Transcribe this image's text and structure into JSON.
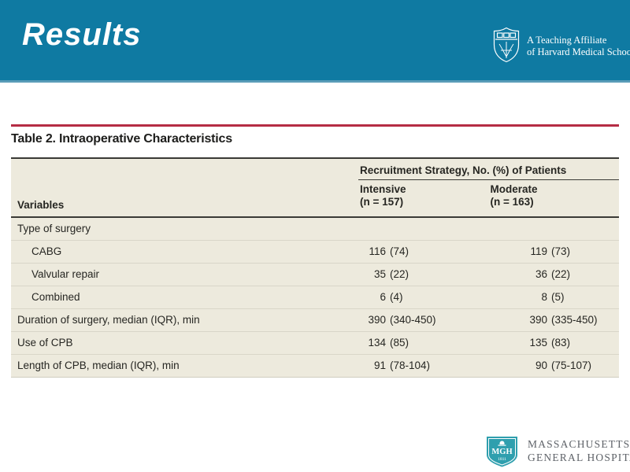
{
  "slide": {
    "title": "Results",
    "affiliation": {
      "line1": "A Teaching Affiliate",
      "line2": "of Harvard Medical School"
    },
    "hospital_logo": {
      "shield_text": "MGH",
      "shield_year": "1811",
      "line1": "MASSACHUSETTS",
      "line2": "GENERAL HOSPITAL"
    }
  },
  "colors": {
    "banner_teal": "#0f7aa2",
    "banner_edge": "#5a9cb8",
    "rule_red": "#b52c44",
    "table_cream": "#edeadd",
    "table_border_dark": "#3a3a36",
    "row_separator": "#d9d6c8",
    "mgh_teal": "#2f9fae",
    "mgh_gray": "#5e6268"
  },
  "table": {
    "title": "Table 2. Intraoperative Characteristics",
    "group_header": "Recruitment Strategy, No. (%) of Patients",
    "col_label": "Variables",
    "columns": [
      {
        "name": "Intensive",
        "n": "(n = 157)"
      },
      {
        "name": "Moderate",
        "n": "(n = 163)"
      }
    ],
    "rows": [
      {
        "label": "Type of surgery",
        "indent": false,
        "intensive": "",
        "moderate": ""
      },
      {
        "label": "CABG",
        "indent": true,
        "intensive": "116 (74)",
        "moderate": "119 (73)"
      },
      {
        "label": "Valvular repair",
        "indent": true,
        "intensive": "35 (22)",
        "moderate": "36 (22)"
      },
      {
        "label": "Combined",
        "indent": true,
        "intensive": "6 (4)",
        "moderate": "8 (5)"
      },
      {
        "label": "Duration of surgery, median (IQR), min",
        "indent": false,
        "intensive": "390 (340-450)",
        "moderate": "390 (335-450)"
      },
      {
        "label": "Use of CPB",
        "indent": false,
        "intensive": "134 (85)",
        "moderate": "135 (83)"
      },
      {
        "label": "Length of CPB, median (IQR), min",
        "indent": false,
        "intensive": "91 (78-104)",
        "moderate": "90 (75-107)"
      }
    ]
  },
  "chart_data": {
    "type": "table",
    "title": "Table 2. Intraoperative Characteristics",
    "group_header": "Recruitment Strategy, No. (%) of Patients",
    "columns": [
      "Variables",
      "Intensive (n = 157)",
      "Moderate (n = 163)"
    ],
    "rows": [
      [
        "Type of surgery",
        "",
        ""
      ],
      [
        "CABG",
        "116 (74)",
        "119 (73)"
      ],
      [
        "Valvular repair",
        "35 (22)",
        "36 (22)"
      ],
      [
        "Combined",
        "6 (4)",
        "8 (5)"
      ],
      [
        "Duration of surgery, median (IQR), min",
        "390 (340-450)",
        "390 (335-450)"
      ],
      [
        "Use of CPB",
        "134 (85)",
        "135 (83)"
      ],
      [
        "Length of CPB, median (IQR), min",
        "91 (78-104)",
        "90 (75-107)"
      ]
    ]
  }
}
